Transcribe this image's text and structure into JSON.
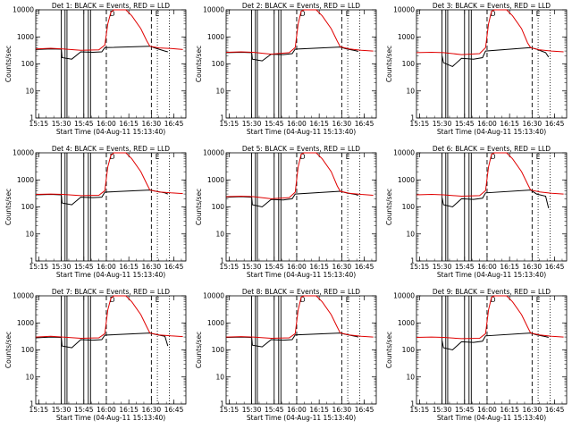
{
  "chart_data": {
    "type": "line",
    "panel_layout": "3x3",
    "yscale": "log",
    "ylim": [
      1,
      10000
    ],
    "yticks": [
      1,
      10,
      100,
      1000,
      10000
    ],
    "ytick_labels": [
      "1",
      "10",
      "100",
      "1000",
      "10000"
    ],
    "ylabel": "Counts/sec",
    "xlim": [
      "15:13",
      "16:53"
    ],
    "xtick_labels": [
      "15:15",
      "15:30",
      "15:45",
      "16:00",
      "16:15",
      "16:30",
      "16:45"
    ],
    "xticks_min": [
      2,
      17,
      32,
      47,
      62,
      77,
      92
    ],
    "xlabel": "Start Time (04-Aug-11 15:13:40)",
    "series_colors": {
      "events": "#000000",
      "lld": "#e00000"
    },
    "markers": {
      "dashed_minutes": [
        47,
        77
      ],
      "dotted_minutes": [
        81,
        89
      ],
      "letter_D": {
        "minute": 51,
        "text": "D"
      },
      "letter_E": {
        "minute": 81,
        "text": "E"
      },
      "gap_lines_minutes": [
        17,
        19.5,
        20.8,
        32,
        35,
        36.5
      ]
    },
    "panels": [
      {
        "title": "Det 1: BLACK = Events, RED = LLD",
        "lld": [
          [
            0,
            360
          ],
          [
            10,
            380
          ],
          [
            18,
            360
          ],
          [
            30,
            320
          ],
          [
            42,
            330
          ],
          [
            46,
            500
          ],
          [
            48,
            3000
          ],
          [
            50,
            8000
          ],
          [
            52,
            10000
          ],
          [
            60,
            10000
          ],
          [
            64,
            6000
          ],
          [
            70,
            2000
          ],
          [
            74,
            700
          ],
          [
            76,
            450
          ],
          [
            82,
            390
          ],
          [
            90,
            370
          ],
          [
            98,
            340
          ]
        ],
        "events": [
          [
            0,
            340
          ],
          [
            10,
            360
          ],
          [
            17,
            350
          ],
          [
            17.5,
            170
          ],
          [
            24,
            150
          ],
          [
            30,
            280
          ],
          [
            38,
            270
          ],
          [
            44,
            280
          ],
          [
            46,
            400
          ],
          [
            76,
            450
          ],
          [
            80,
            380
          ],
          [
            86,
            300
          ],
          [
            88,
            280
          ]
        ]
      },
      {
        "title": "Det 2: BLACK = Events, RED = LLD",
        "lld": [
          [
            0,
            270
          ],
          [
            10,
            280
          ],
          [
            18,
            270
          ],
          [
            30,
            230
          ],
          [
            42,
            260
          ],
          [
            46,
            400
          ],
          [
            48,
            3000
          ],
          [
            50,
            9000
          ],
          [
            52,
            10000
          ],
          [
            60,
            10000
          ],
          [
            64,
            6000
          ],
          [
            70,
            2000
          ],
          [
            74,
            700
          ],
          [
            76,
            430
          ],
          [
            82,
            360
          ],
          [
            90,
            320
          ],
          [
            98,
            300
          ]
        ],
        "events": [
          [
            0,
            260
          ],
          [
            10,
            270
          ],
          [
            17,
            260
          ],
          [
            17.5,
            150
          ],
          [
            24,
            130
          ],
          [
            30,
            230
          ],
          [
            38,
            220
          ],
          [
            44,
            240
          ],
          [
            46,
            350
          ],
          [
            76,
            420
          ],
          [
            80,
            360
          ],
          [
            86,
            310
          ],
          [
            88,
            290
          ]
        ]
      },
      {
        "title": "Det 3: BLACK = Events, RED = LLD",
        "lld": [
          [
            0,
            260
          ],
          [
            10,
            270
          ],
          [
            18,
            260
          ],
          [
            30,
            220
          ],
          [
            42,
            240
          ],
          [
            46,
            400
          ],
          [
            48,
            3000
          ],
          [
            50,
            9000
          ],
          [
            52,
            10000
          ],
          [
            60,
            10000
          ],
          [
            64,
            6000
          ],
          [
            70,
            2000
          ],
          [
            74,
            600
          ],
          [
            76,
            400
          ],
          [
            82,
            330
          ],
          [
            90,
            300
          ],
          [
            98,
            280
          ]
        ],
        "events": [
          [
            17,
            200
          ],
          [
            18,
            110
          ],
          [
            24,
            80
          ],
          [
            30,
            160
          ],
          [
            38,
            150
          ],
          [
            44,
            170
          ],
          [
            46,
            300
          ],
          [
            76,
            400
          ],
          [
            80,
            350
          ],
          [
            86,
            260
          ],
          [
            88,
            180
          ]
        ]
      },
      {
        "title": "Det 4: BLACK = Events, RED = LLD",
        "lld": [
          [
            0,
            290
          ],
          [
            10,
            300
          ],
          [
            18,
            290
          ],
          [
            30,
            260
          ],
          [
            42,
            270
          ],
          [
            46,
            400
          ],
          [
            48,
            3000
          ],
          [
            50,
            8000
          ],
          [
            52,
            10000
          ],
          [
            60,
            10000
          ],
          [
            64,
            6000
          ],
          [
            70,
            2000
          ],
          [
            74,
            700
          ],
          [
            76,
            420
          ],
          [
            82,
            360
          ],
          [
            90,
            330
          ],
          [
            98,
            310
          ]
        ],
        "events": [
          [
            0,
            280
          ],
          [
            10,
            290
          ],
          [
            17,
            280
          ],
          [
            17.5,
            140
          ],
          [
            24,
            120
          ],
          [
            30,
            230
          ],
          [
            38,
            220
          ],
          [
            44,
            230
          ],
          [
            46,
            350
          ],
          [
            76,
            420
          ],
          [
            80,
            380
          ],
          [
            86,
            330
          ],
          [
            88,
            300
          ]
        ]
      },
      {
        "title": "Det 5: BLACK = Events, RED = LLD",
        "lld": [
          [
            0,
            240
          ],
          [
            10,
            250
          ],
          [
            18,
            240
          ],
          [
            30,
            200
          ],
          [
            42,
            220
          ],
          [
            46,
            350
          ],
          [
            48,
            3000
          ],
          [
            50,
            9000
          ],
          [
            52,
            10000
          ],
          [
            60,
            10000
          ],
          [
            64,
            6000
          ],
          [
            70,
            2000
          ],
          [
            74,
            600
          ],
          [
            76,
            380
          ],
          [
            82,
            320
          ],
          [
            90,
            290
          ],
          [
            98,
            270
          ]
        ],
        "events": [
          [
            0,
            230
          ],
          [
            10,
            240
          ],
          [
            17,
            230
          ],
          [
            17.5,
            120
          ],
          [
            24,
            100
          ],
          [
            30,
            190
          ],
          [
            38,
            180
          ],
          [
            44,
            200
          ],
          [
            46,
            300
          ],
          [
            76,
            380
          ],
          [
            80,
            330
          ],
          [
            86,
            290
          ],
          [
            88,
            270
          ]
        ]
      },
      {
        "title": "Det 6: BLACK = Events, RED = LLD",
        "lld": [
          [
            0,
            280
          ],
          [
            10,
            290
          ],
          [
            18,
            280
          ],
          [
            30,
            250
          ],
          [
            42,
            260
          ],
          [
            46,
            400
          ],
          [
            48,
            3000
          ],
          [
            50,
            9000
          ],
          [
            52,
            10000
          ],
          [
            60,
            10000
          ],
          [
            64,
            6000
          ],
          [
            70,
            2000
          ],
          [
            74,
            700
          ],
          [
            76,
            420
          ],
          [
            82,
            360
          ],
          [
            90,
            320
          ],
          [
            98,
            300
          ]
        ],
        "events": [
          [
            17,
            220
          ],
          [
            18,
            120
          ],
          [
            24,
            100
          ],
          [
            30,
            200
          ],
          [
            38,
            190
          ],
          [
            44,
            210
          ],
          [
            46,
            330
          ],
          [
            76,
            420
          ],
          [
            80,
            300
          ],
          [
            86,
            250
          ],
          [
            88,
            90
          ]
        ]
      },
      {
        "title": "Det 7: BLACK = Events, RED = LLD",
        "lld": [
          [
            0,
            300
          ],
          [
            10,
            320
          ],
          [
            18,
            300
          ],
          [
            30,
            270
          ],
          [
            42,
            280
          ],
          [
            46,
            400
          ],
          [
            48,
            3000
          ],
          [
            50,
            8000
          ],
          [
            52,
            10000
          ],
          [
            60,
            10000
          ],
          [
            64,
            6000
          ],
          [
            70,
            2000
          ],
          [
            74,
            700
          ],
          [
            76,
            420
          ],
          [
            82,
            360
          ],
          [
            90,
            330
          ],
          [
            98,
            310
          ]
        ],
        "events": [
          [
            0,
            280
          ],
          [
            10,
            300
          ],
          [
            17,
            290
          ],
          [
            17.5,
            140
          ],
          [
            24,
            120
          ],
          [
            30,
            240
          ],
          [
            38,
            230
          ],
          [
            44,
            240
          ],
          [
            46,
            350
          ],
          [
            76,
            420
          ],
          [
            80,
            370
          ],
          [
            86,
            320
          ],
          [
            88,
            140
          ]
        ]
      },
      {
        "title": "Det 8: BLACK = Events, RED = LLD",
        "lld": [
          [
            0,
            300
          ],
          [
            10,
            310
          ],
          [
            18,
            300
          ],
          [
            30,
            270
          ],
          [
            42,
            280
          ],
          [
            46,
            400
          ],
          [
            48,
            3000
          ],
          [
            50,
            9000
          ],
          [
            52,
            10000
          ],
          [
            60,
            10000
          ],
          [
            64,
            6000
          ],
          [
            70,
            2000
          ],
          [
            74,
            700
          ],
          [
            76,
            420
          ],
          [
            82,
            360
          ],
          [
            90,
            320
          ],
          [
            98,
            300
          ]
        ],
        "events": [
          [
            0,
            290
          ],
          [
            10,
            300
          ],
          [
            17,
            290
          ],
          [
            17.5,
            150
          ],
          [
            24,
            130
          ],
          [
            30,
            240
          ],
          [
            38,
            230
          ],
          [
            44,
            240
          ],
          [
            46,
            360
          ],
          [
            76,
            420
          ],
          [
            80,
            370
          ],
          [
            86,
            320
          ],
          [
            88,
            300
          ]
        ]
      },
      {
        "title": "Det 9: BLACK = Events, RED = LLD",
        "lld": [
          [
            0,
            290
          ],
          [
            10,
            300
          ],
          [
            18,
            290
          ],
          [
            30,
            260
          ],
          [
            42,
            270
          ],
          [
            46,
            400
          ],
          [
            48,
            3000
          ],
          [
            50,
            9000
          ],
          [
            52,
            10000
          ],
          [
            60,
            10000
          ],
          [
            64,
            6000
          ],
          [
            70,
            2000
          ],
          [
            74,
            700
          ],
          [
            76,
            420
          ],
          [
            82,
            360
          ],
          [
            90,
            320
          ],
          [
            98,
            300
          ]
        ],
        "events": [
          [
            17,
            220
          ],
          [
            18,
            120
          ],
          [
            24,
            100
          ],
          [
            30,
            200
          ],
          [
            38,
            190
          ],
          [
            44,
            210
          ],
          [
            46,
            330
          ],
          [
            76,
            420
          ],
          [
            80,
            360
          ],
          [
            86,
            310
          ],
          [
            88,
            290
          ]
        ]
      }
    ]
  }
}
